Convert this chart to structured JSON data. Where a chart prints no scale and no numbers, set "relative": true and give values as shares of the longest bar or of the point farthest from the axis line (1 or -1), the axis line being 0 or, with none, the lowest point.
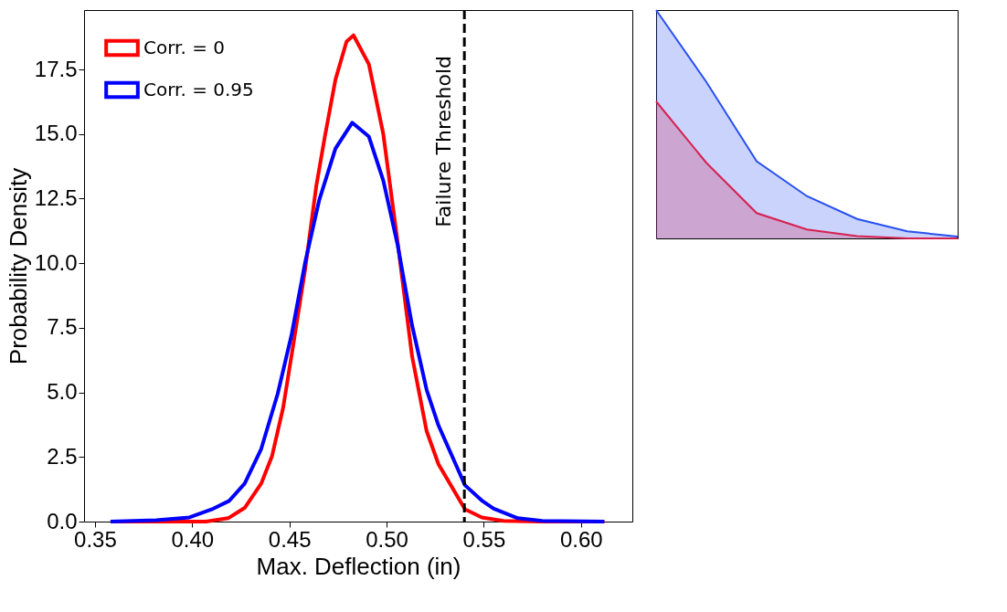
{
  "chart_data": [
    {
      "type": "line",
      "xlabel": "Max. Deflection (in)",
      "ylabel": "Probability Density",
      "xlim": [
        0.3444,
        0.6264
      ],
      "ylim": [
        0,
        19.8
      ],
      "xticks": [
        0.35,
        {
          "value": 0.4,
          "label": "0.40"
        },
        0.45,
        {
          "value": 0.5,
          "label": "0.50"
        },
        0.55,
        {
          "value": 0.6,
          "label": "0.60"
        }
      ],
      "yticks": [
        {
          "value": 0,
          "label": "0.0"
        },
        2.5,
        {
          "value": 5,
          "label": "5.0"
        },
        7.5,
        {
          "value": 10,
          "label": "10.0"
        },
        12.5,
        {
          "value": 15,
          "label": "15.0"
        },
        17.5
      ],
      "legend": "top left",
      "grid": false,
      "line_style": "solid",
      "ref_lines": [
        {
          "axis": "x",
          "value": 0.54,
          "label": "Failure Threshold",
          "color": "#000000",
          "line_style": "dashed"
        }
      ],
      "series": [
        {
          "name": "Corr. = 0",
          "color": "#ff0000",
          "x": [
            0.358,
            0.4,
            0.4071,
            0.4185,
            0.427,
            0.4355,
            0.4411,
            0.4468,
            0.4525,
            0.4581,
            0.4638,
            0.4681,
            0.4737,
            0.4794,
            0.483,
            0.4909,
            0.4983,
            0.5057,
            0.5131,
            0.5206,
            0.5267,
            0.5403,
            0.549,
            0.56,
            0.58,
            0.612
          ],
          "values": [
            0,
            0,
            0,
            0.13,
            0.53,
            1.47,
            2.54,
            4.41,
            7.08,
            9.76,
            12.97,
            14.84,
            17.11,
            18.58,
            18.82,
            17.7,
            15.0,
            10.8,
            6.4,
            3.5,
            2.22,
            0.48,
            0.16,
            0.03,
            0,
            0
          ]
        },
        {
          "name": "Corr. = 0.95",
          "color": "#0000ff",
          "x": [
            0.358,
            0.3816,
            0.3986,
            0.41,
            0.419,
            0.427,
            0.4355,
            0.444,
            0.4511,
            0.4581,
            0.4653,
            0.4737,
            0.4823,
            0.4909,
            0.4983,
            0.5057,
            0.5131,
            0.5206,
            0.5267,
            0.5403,
            0.5494,
            0.5551,
            0.5675,
            0.58,
            0.612
          ],
          "values": [
            0,
            0.05,
            0.16,
            0.47,
            0.8,
            1.47,
            2.81,
            4.95,
            7.22,
            10.03,
            12.43,
            14.44,
            15.44,
            14.9,
            13.2,
            10.7,
            7.6,
            5.1,
            3.72,
            1.41,
            0.79,
            0.5,
            0.13,
            0.03,
            0
          ]
        }
      ]
    },
    {
      "type": "area",
      "relative": true,
      "categories": [
        null,
        null,
        null,
        null,
        null,
        null,
        null
      ],
      "series": [
        {
          "color": "#2850f0",
          "values": [
            1,
            0.685,
            0.338,
            0.185,
            0.085,
            0.031,
            0.008
          ]
        },
        {
          "color": "#d62050",
          "values": [
            0.6,
            0.331,
            0.111,
            0.039,
            0.01,
            0,
            0
          ]
        }
      ]
    }
  ]
}
